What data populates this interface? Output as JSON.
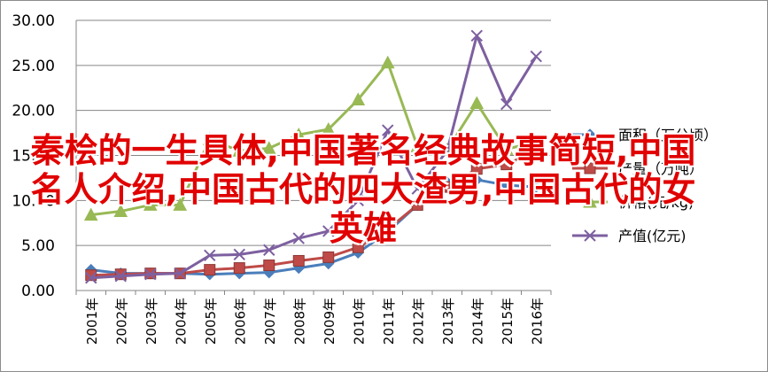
{
  "chart_data": {
    "type": "line",
    "categories": [
      "2001年",
      "2002年",
      "2003年",
      "2004年",
      "2005年",
      "2006年",
      "2007年",
      "2008年",
      "2009年",
      "2010年",
      "2011年",
      "2012年",
      "2013年",
      "2014年",
      "2015年",
      "2016年"
    ],
    "ylim": [
      0,
      30
    ],
    "yticks": [
      "0.00",
      "5.00",
      "10.00",
      "15.00",
      "20.00",
      "25.00",
      "30.00"
    ],
    "grid": true,
    "legend_position": "right",
    "series": [
      {
        "name": "面积（万公顷）",
        "color": "#4a7ebb",
        "marker": "diamond",
        "values": [
          2.3,
          1.9,
          1.9,
          1.9,
          1.8,
          1.9,
          2.0,
          2.5,
          3.0,
          4.2,
          6.5,
          9.5,
          12.0,
          12.3,
          11.7,
          11.5
        ]
      },
      {
        "name": "产量（万吨）",
        "color": "#be4b48",
        "marker": "square",
        "values": [
          1.7,
          1.8,
          1.9,
          1.9,
          2.3,
          2.5,
          2.8,
          3.3,
          3.7,
          4.8,
          6.8,
          9.5,
          11.5,
          13.5,
          14.0,
          15.5
        ]
      },
      {
        "name": "价格(元/kg)",
        "color": "#98b954",
        "marker": "triangle",
        "values": [
          8.4,
          8.8,
          9.5,
          9.5,
          16.8,
          15.5,
          15.8,
          17.3,
          17.9,
          21.2,
          25.3,
          16.0,
          15.6,
          20.8,
          15.7,
          16.5
        ]
      },
      {
        "name": "产值(亿元)",
        "color": "#7d60a0",
        "marker": "x",
        "values": [
          1.4,
          1.6,
          1.8,
          1.9,
          3.9,
          4.0,
          4.5,
          5.8,
          6.6,
          10.0,
          17.8,
          11.3,
          15.5,
          28.3,
          20.7,
          26.0
        ]
      }
    ]
  },
  "overlay": {
    "line1": "秦桧的一生具体,中国著名经典故事简短,中国",
    "line2": "名人介绍,中国古代的四大渣男,中国古代的女",
    "line3": "英雄"
  }
}
